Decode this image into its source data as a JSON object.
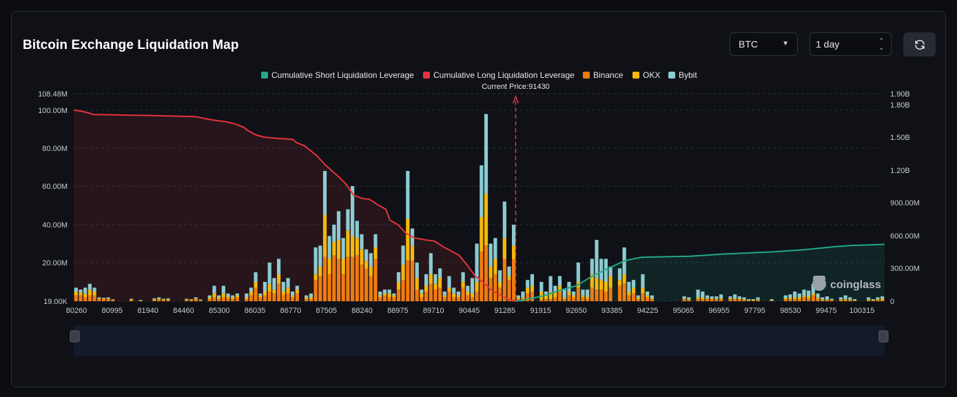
{
  "header": {
    "title": "Bitcoin Exchange Liquidation Map",
    "symbol_value": "BTC",
    "period_value": "1 day",
    "refresh_icon": "refresh-icon"
  },
  "watermark": "coinglass",
  "colors": {
    "short": "#22a88a",
    "long": "#e5333f",
    "binance": "#f07b10",
    "okx": "#f5b80b",
    "bybit": "#8ccbd2"
  },
  "chart_data": {
    "type": "bar",
    "legend": [
      {
        "name": "Cumulative Short Liquidation Leverage",
        "key": "short"
      },
      {
        "name": "Cumulative Long Liquidation Leverage",
        "key": "long"
      },
      {
        "name": "Binance",
        "key": "binance"
      },
      {
        "name": "OKX",
        "key": "okx"
      },
      {
        "name": "Bybit",
        "key": "bybit"
      }
    ],
    "legend_position": "top-center",
    "current_price_label": "Current Price:91430",
    "current_price": 91430,
    "x_tick_labels": [
      "80260",
      "80995",
      "81940",
      "84460",
      "85300",
      "86035",
      "86770",
      "87505",
      "88240",
      "88975",
      "89710",
      "90445",
      "91285",
      "91915",
      "92650",
      "93385",
      "94225",
      "95065",
      "96955",
      "97795",
      "98530",
      "99475",
      "100315"
    ],
    "y_left_ticks": [
      "19.00K",
      "20.00M",
      "40.00M",
      "60.00M",
      "80.00M",
      "100.00M",
      "108.48M"
    ],
    "y_left_values": [
      0.019,
      20,
      40,
      60,
      80,
      100,
      108.48
    ],
    "y_left_range": [
      0.019,
      108.48
    ],
    "y_right_ticks": [
      "0",
      "300.00M",
      "600.00M",
      "900.00M",
      "1.20B",
      "1.50B",
      "1.80B",
      "1.90B"
    ],
    "y_right_values": [
      0,
      300,
      600,
      900,
      1200,
      1500,
      1800,
      1900
    ],
    "y_right_range": [
      0,
      1900
    ],
    "left_unit": "M",
    "right_unit": "M",
    "bars": [
      [
        3,
        2,
        2
      ],
      [
        3,
        1.5,
        1.5
      ],
      [
        2,
        2,
        3
      ],
      [
        3,
        3,
        3
      ],
      [
        3,
        2,
        2
      ],
      [
        1,
        0.5,
        0.5
      ],
      [
        1,
        0.5,
        0.3
      ],
      [
        1,
        0.5,
        0.5
      ],
      [
        0.5,
        0.3,
        0.2
      ],
      [
        0,
        0,
        0
      ],
      [
        0,
        0,
        0
      ],
      [
        0,
        0,
        0
      ],
      [
        0.5,
        0.5,
        0.3
      ],
      [
        0,
        0,
        0
      ],
      [
        0.2,
        0.2,
        0.2
      ],
      [
        0,
        0,
        0
      ],
      [
        0,
        0,
        0
      ],
      [
        0.5,
        0.5,
        0.5
      ],
      [
        1,
        0.5,
        0.5
      ],
      [
        0.5,
        0.5,
        0.3
      ],
      [
        0.5,
        0.5,
        0.5
      ],
      [
        0,
        0,
        0
      ],
      [
        0,
        0,
        0
      ],
      [
        0,
        0,
        0
      ],
      [
        0.5,
        0.5,
        0.3
      ],
      [
        0.5,
        0.3,
        0.3
      ],
      [
        1,
        0.5,
        0.5
      ],
      [
        0.3,
        0.3,
        0.3
      ],
      [
        0,
        0,
        0
      ],
      [
        1,
        1,
        1
      ],
      [
        2,
        2,
        4
      ],
      [
        1,
        1,
        1
      ],
      [
        2,
        2,
        4
      ],
      [
        1.5,
        1,
        1.5
      ],
      [
        1,
        1,
        1
      ],
      [
        2,
        1,
        1
      ],
      [
        0,
        0,
        0
      ],
      [
        1,
        1,
        2
      ],
      [
        3,
        2,
        2
      ],
      [
        7,
        3,
        5
      ],
      [
        2,
        1,
        1
      ],
      [
        3,
        2,
        5
      ],
      [
        5,
        4,
        11
      ],
      [
        4,
        2,
        6
      ],
      [
        9,
        5,
        8
      ],
      [
        3,
        2,
        5
      ],
      [
        4,
        3,
        5
      ],
      [
        2,
        1,
        2
      ],
      [
        4,
        2,
        2
      ],
      [
        0,
        0,
        0
      ],
      [
        1,
        1,
        1
      ],
      [
        1,
        1,
        2
      ],
      [
        11,
        3,
        14
      ],
      [
        13,
        5,
        11
      ],
      [
        23,
        22,
        23
      ],
      [
        14,
        8,
        12
      ],
      [
        24,
        7,
        9
      ],
      [
        22,
        10,
        15
      ],
      [
        14,
        8,
        11
      ],
      [
        23,
        14,
        11
      ],
      [
        23,
        11,
        26
      ],
      [
        24,
        9,
        9
      ],
      [
        19,
        8,
        8
      ],
      [
        17,
        4,
        6
      ],
      [
        13,
        5,
        7
      ],
      [
        22,
        6,
        7
      ],
      [
        2,
        1,
        2
      ],
      [
        3,
        1,
        2
      ],
      [
        2,
        2,
        2
      ],
      [
        2,
        1,
        1
      ],
      [
        6,
        4,
        5
      ],
      [
        11,
        8,
        10
      ],
      [
        21,
        22,
        25
      ],
      [
        21,
        8,
        9
      ],
      [
        6,
        6,
        8
      ],
      [
        2,
        2,
        2
      ],
      [
        5,
        3,
        6
      ],
      [
        9,
        5,
        11
      ],
      [
        6,
        3,
        5
      ],
      [
        7,
        5,
        5
      ],
      [
        2,
        1,
        2
      ],
      [
        5,
        2,
        6
      ],
      [
        2,
        2,
        3
      ],
      [
        2,
        1,
        2
      ],
      [
        7,
        3,
        5
      ],
      [
        3,
        2,
        3
      ],
      [
        2,
        2,
        8
      ],
      [
        5,
        5,
        20
      ],
      [
        26,
        18,
        27
      ],
      [
        29,
        27,
        42
      ],
      [
        12,
        6,
        12
      ],
      [
        14,
        8,
        11
      ],
      [
        7,
        3,
        6
      ],
      [
        22,
        11,
        19
      ],
      [
        11,
        2,
        5
      ],
      [
        22,
        7,
        11
      ],
      [
        1,
        1,
        1
      ],
      [
        1,
        1,
        3
      ],
      [
        4,
        3,
        4
      ],
      [
        5,
        3,
        6
      ],
      [
        0,
        0,
        0
      ],
      [
        1,
        4,
        5
      ],
      [
        1,
        2,
        2
      ],
      [
        1,
        4,
        8
      ],
      [
        2,
        3,
        3
      ],
      [
        5,
        3,
        5
      ],
      [
        1,
        1,
        4
      ],
      [
        3,
        2,
        5
      ],
      [
        2,
        1,
        2
      ],
      [
        7,
        3,
        10
      ],
      [
        2,
        1,
        3
      ],
      [
        1,
        1,
        4
      ],
      [
        7,
        7,
        8
      ],
      [
        6,
        6,
        20
      ],
      [
        6,
        5,
        11
      ],
      [
        5,
        5,
        12
      ],
      [
        7,
        6,
        5
      ],
      [
        0,
        0,
        0
      ],
      [
        8,
        3,
        6
      ],
      [
        9,
        5,
        14
      ],
      [
        3,
        2,
        5
      ],
      [
        4,
        3,
        4
      ],
      [
        1,
        1,
        1
      ],
      [
        4,
        3,
        7
      ],
      [
        2,
        1,
        2
      ],
      [
        1,
        0.5,
        1.5
      ],
      [
        0,
        0,
        0
      ],
      [
        0,
        0,
        0
      ],
      [
        0,
        0,
        0
      ],
      [
        0,
        0,
        0
      ],
      [
        0,
        0,
        0
      ],
      [
        0,
        0,
        0
      ],
      [
        1,
        0.5,
        1
      ],
      [
        0.5,
        0.5,
        1
      ],
      [
        0,
        0,
        0
      ],
      [
        1,
        1,
        4
      ],
      [
        1,
        1,
        3
      ],
      [
        1,
        0.5,
        1.5
      ],
      [
        1,
        0.5,
        1
      ],
      [
        1,
        0.5,
        1
      ],
      [
        1,
        0.5,
        2
      ],
      [
        0,
        0,
        0
      ],
      [
        1,
        0.5,
        1
      ],
      [
        1,
        0.5,
        2
      ],
      [
        1,
        0.5,
        1
      ],
      [
        0.5,
        0.5,
        1
      ],
      [
        0.3,
        0.3,
        0.5
      ],
      [
        0.3,
        0.3,
        0.5
      ],
      [
        0.5,
        0.5,
        1
      ],
      [
        0,
        0,
        0
      ],
      [
        0,
        0,
        0
      ],
      [
        0.3,
        0.3,
        0.5
      ],
      [
        0,
        0,
        0
      ],
      [
        0,
        0,
        0
      ],
      [
        1,
        0.5,
        1.5
      ],
      [
        1,
        1,
        1.5
      ],
      [
        1,
        1,
        3
      ],
      [
        1,
        1,
        2
      ],
      [
        2,
        1,
        3
      ],
      [
        1.5,
        1,
        3
      ],
      [
        3,
        1,
        5
      ],
      [
        1,
        1,
        2
      ],
      [
        0.5,
        0.5,
        1
      ],
      [
        0.5,
        0.5,
        1.5
      ],
      [
        0.5,
        0.3,
        0.5
      ],
      [
        0,
        0,
        0
      ],
      [
        0.5,
        0.5,
        1
      ],
      [
        0.5,
        0.5,
        2
      ],
      [
        0.5,
        0.5,
        1
      ],
      [
        0.3,
        0.3,
        0.5
      ],
      [
        0,
        0,
        0
      ],
      [
        0,
        0,
        0
      ],
      [
        0.5,
        0.5,
        1
      ],
      [
        0.3,
        0.3,
        0.5
      ],
      [
        0.5,
        0.5,
        1
      ],
      [
        0.5,
        1,
        1
      ]
    ],
    "long_curve": [
      [
        0,
        1750
      ],
      [
        0.01,
        1740
      ],
      [
        0.02,
        1720
      ],
      [
        0.025,
        1710
      ],
      [
        0.1,
        1700
      ],
      [
        0.15,
        1690
      ],
      [
        0.17,
        1660
      ],
      [
        0.18,
        1650
      ],
      [
        0.19,
        1640
      ],
      [
        0.2,
        1620
      ],
      [
        0.21,
        1590
      ],
      [
        0.215,
        1560
      ],
      [
        0.225,
        1520
      ],
      [
        0.235,
        1500
      ],
      [
        0.25,
        1490
      ],
      [
        0.27,
        1480
      ],
      [
        0.275,
        1450
      ],
      [
        0.285,
        1420
      ],
      [
        0.3,
        1330
      ],
      [
        0.31,
        1250
      ],
      [
        0.325,
        1150
      ],
      [
        0.335,
        1080
      ],
      [
        0.345,
        970
      ],
      [
        0.355,
        940
      ],
      [
        0.365,
        930
      ],
      [
        0.375,
        880
      ],
      [
        0.385,
        840
      ],
      [
        0.39,
        740
      ],
      [
        0.4,
        700
      ],
      [
        0.41,
        620
      ],
      [
        0.42,
        580
      ],
      [
        0.435,
        560
      ],
      [
        0.445,
        550
      ],
      [
        0.455,
        500
      ],
      [
        0.465,
        460
      ],
      [
        0.475,
        420
      ],
      [
        0.485,
        330
      ],
      [
        0.495,
        230
      ],
      [
        0.505,
        170
      ],
      [
        0.515,
        100
      ],
      [
        0.525,
        60
      ],
      [
        0.535,
        20
      ],
      [
        0.545,
        0
      ]
    ],
    "short_curve": [
      [
        0.545,
        0
      ],
      [
        0.56,
        20
      ],
      [
        0.58,
        50
      ],
      [
        0.6,
        100
      ],
      [
        0.62,
        140
      ],
      [
        0.64,
        230
      ],
      [
        0.66,
        300
      ],
      [
        0.68,
        370
      ],
      [
        0.7,
        400
      ],
      [
        0.76,
        410
      ],
      [
        0.8,
        430
      ],
      [
        0.86,
        450
      ],
      [
        0.9,
        470
      ],
      [
        0.94,
        500
      ],
      [
        0.96,
        510
      ],
      [
        1,
        520
      ]
    ]
  }
}
